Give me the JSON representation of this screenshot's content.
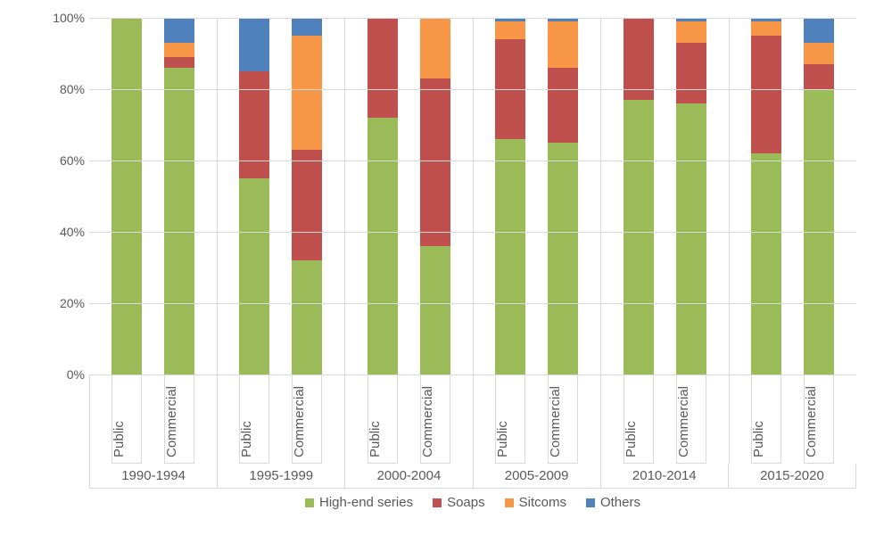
{
  "chart": {
    "type": "stacked-bar-100",
    "background_color": "#ffffff",
    "grid_color": "#d9d9d9",
    "text_color": "#595959",
    "font_family": "Segoe UI",
    "label_fontsize": 15,
    "tick_fontsize": 14,
    "y_axis": {
      "min": 0,
      "max": 100,
      "step": 20,
      "unit": "%",
      "ticks": [
        "0%",
        "20%",
        "40%",
        "60%",
        "80%",
        "100%"
      ]
    },
    "series": [
      {
        "key": "high_end",
        "label": "High-end series",
        "color": "#9bbb59"
      },
      {
        "key": "soaps",
        "label": "Soaps",
        "color": "#c0504d"
      },
      {
        "key": "sitcoms",
        "label": "Sitcoms",
        "color": "#f79646"
      },
      {
        "key": "others",
        "label": "Others",
        "color": "#4f81bd"
      }
    ],
    "sub_labels": [
      "Public",
      "Commercial"
    ],
    "periods": [
      {
        "label": "1990-1994",
        "bars": [
          {
            "sub": "Public",
            "high_end": 100,
            "soaps": 0,
            "sitcoms": 0,
            "others": 0
          },
          {
            "sub": "Commercial",
            "high_end": 86,
            "soaps": 3,
            "sitcoms": 4,
            "others": 7
          }
        ]
      },
      {
        "label": "1995-1999",
        "bars": [
          {
            "sub": "Public",
            "high_end": 55,
            "soaps": 30,
            "sitcoms": 0,
            "others": 15
          },
          {
            "sub": "Commercial",
            "high_end": 32,
            "soaps": 31,
            "sitcoms": 32,
            "others": 5
          }
        ]
      },
      {
        "label": "2000-2004",
        "bars": [
          {
            "sub": "Public",
            "high_end": 72,
            "soaps": 28,
            "sitcoms": 0,
            "others": 0
          },
          {
            "sub": "Commercial",
            "high_end": 36,
            "soaps": 47,
            "sitcoms": 17,
            "others": 0
          }
        ]
      },
      {
        "label": "2005-2009",
        "bars": [
          {
            "sub": "Public",
            "high_end": 66,
            "soaps": 28,
            "sitcoms": 5,
            "others": 1
          },
          {
            "sub": "Commercial",
            "high_end": 65,
            "soaps": 21,
            "sitcoms": 13,
            "others": 1
          }
        ]
      },
      {
        "label": "2010-2014",
        "bars": [
          {
            "sub": "Public",
            "high_end": 77,
            "soaps": 23,
            "sitcoms": 0,
            "others": 0
          },
          {
            "sub": "Commercial",
            "high_end": 76,
            "soaps": 17,
            "sitcoms": 6,
            "others": 1
          }
        ]
      },
      {
        "label": "2015-2020",
        "bars": [
          {
            "sub": "Public",
            "high_end": 62,
            "soaps": 33,
            "sitcoms": 4,
            "others": 1
          },
          {
            "sub": "Commercial",
            "high_end": 80,
            "soaps": 7,
            "sitcoms": 6,
            "others": 7
          }
        ]
      }
    ]
  }
}
